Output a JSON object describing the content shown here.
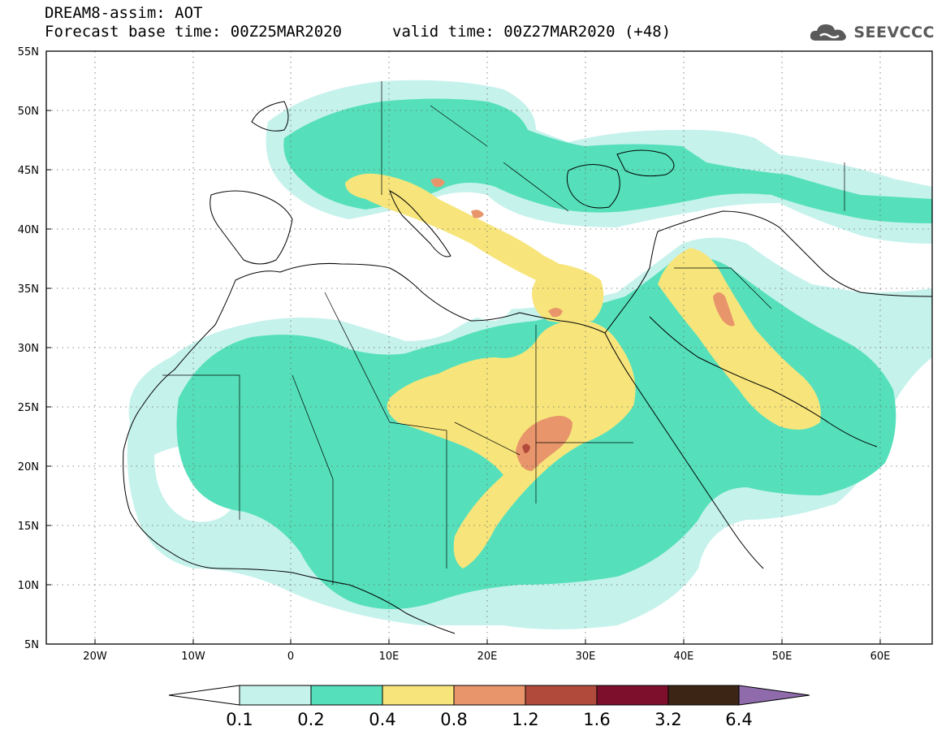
{
  "header": {
    "model_product": "DREAM8-assim: AOT",
    "base_time": "Forecast base time: 00Z25MAR2020",
    "valid_time": "valid time: 00Z27MAR2020 (+48)"
  },
  "logo": {
    "text": "SEEVCCC",
    "icon": "cloud-logo-icon"
  },
  "map": {
    "lon_range": [
      -25,
      65
    ],
    "lat_range": [
      5,
      55
    ],
    "grid": true,
    "lat_ticks": [
      {
        "value": 55,
        "label": "55N"
      },
      {
        "value": 50,
        "label": "50N"
      },
      {
        "value": 45,
        "label": "45N"
      },
      {
        "value": 40,
        "label": "40N"
      },
      {
        "value": 35,
        "label": "35N"
      },
      {
        "value": 30,
        "label": "30N"
      },
      {
        "value": 25,
        "label": "25N"
      },
      {
        "value": 20,
        "label": "20N"
      },
      {
        "value": 15,
        "label": "15N"
      },
      {
        "value": 10,
        "label": "10N"
      },
      {
        "value": 5,
        "label": "5N"
      }
    ],
    "lon_ticks": [
      {
        "value": -20,
        "label": "20W"
      },
      {
        "value": -10,
        "label": "10W"
      },
      {
        "value": 0,
        "label": "0"
      },
      {
        "value": 10,
        "label": "10E"
      },
      {
        "value": 20,
        "label": "20E"
      },
      {
        "value": 30,
        "label": "30E"
      },
      {
        "value": 40,
        "label": "40E"
      },
      {
        "value": 50,
        "label": "50E"
      },
      {
        "value": 60,
        "label": "60E"
      }
    ]
  },
  "colorbar": {
    "levels": [
      {
        "label": "0.1",
        "color": "#c6f2ec"
      },
      {
        "label": "0.2",
        "color": "#55e0bb"
      },
      {
        "label": "0.4",
        "color": "#f7e57b"
      },
      {
        "label": "0.8",
        "color": "#e8956b"
      },
      {
        "label": "1.2",
        "color": "#b14a3b"
      },
      {
        "label": "1.6",
        "color": "#7e0f2c"
      },
      {
        "label": "3.2",
        "color": "#3d2516"
      },
      {
        "label": "6.4",
        "color": "#8f6bab"
      }
    ],
    "under_color": "#ffffff"
  },
  "colors": {
    "aot_0_1": "#c6f2ec",
    "aot_0_2": "#55e0bb",
    "aot_0_4": "#f7e57b",
    "aot_0_8": "#e8956b",
    "aot_1_2": "#b14a3b"
  }
}
